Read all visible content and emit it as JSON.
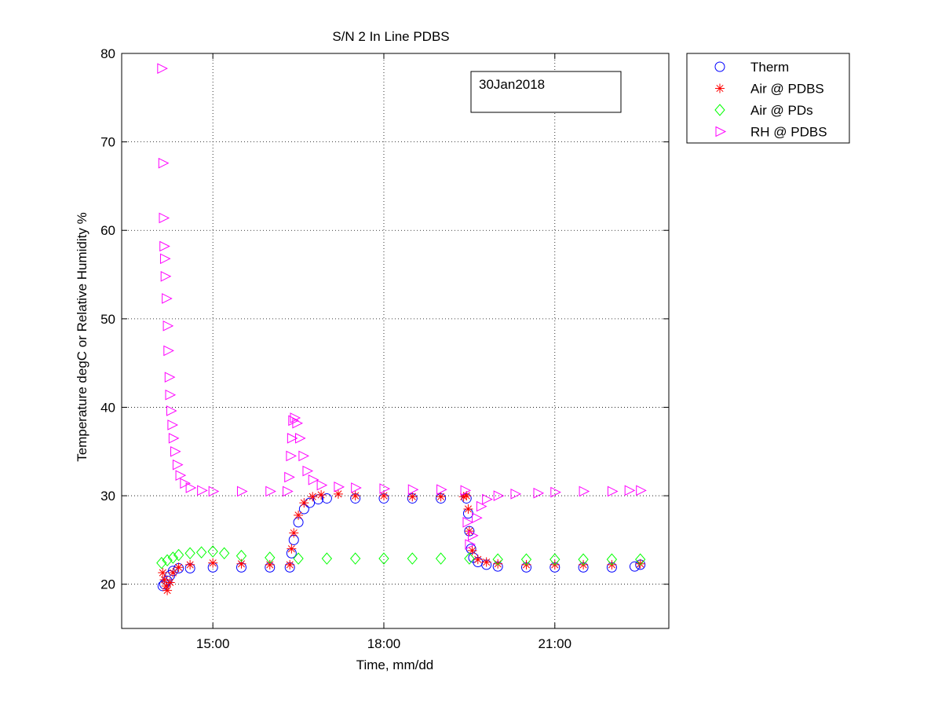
{
  "chart_data": {
    "type": "scatter",
    "title": "S/N 2 In Line PDBS",
    "xlabel": "Time, mm/dd",
    "ylabel": "Temperature degC or Relative Humidity %",
    "x_unit": "hours of day",
    "xlim": [
      13.4,
      23.0
    ],
    "ylim": [
      15,
      80
    ],
    "x_ticks": [
      15,
      18,
      21
    ],
    "x_tick_labels": [
      "15:00",
      "18:00",
      "21:00"
    ],
    "y_ticks": [
      20,
      30,
      40,
      50,
      60,
      70,
      80
    ],
    "grid": true,
    "annotation": "30Jan2018",
    "legend_position": "outside-top-right",
    "series": [
      {
        "name": "Therm",
        "marker": "circle",
        "color": "#0000ff",
        "points": [
          [
            14.12,
            19.8
          ],
          [
            14.15,
            20.0
          ],
          [
            14.2,
            20.4
          ],
          [
            14.25,
            21.0
          ],
          [
            14.3,
            21.5
          ],
          [
            14.4,
            21.8
          ],
          [
            14.6,
            21.8
          ],
          [
            15.0,
            21.9
          ],
          [
            15.5,
            21.9
          ],
          [
            16.0,
            21.9
          ],
          [
            16.35,
            21.9
          ],
          [
            16.38,
            23.5
          ],
          [
            16.42,
            25.0
          ],
          [
            16.5,
            27.0
          ],
          [
            16.6,
            28.5
          ],
          [
            16.7,
            29.2
          ],
          [
            16.85,
            29.6
          ],
          [
            17.0,
            29.7
          ],
          [
            17.5,
            29.7
          ],
          [
            18.0,
            29.7
          ],
          [
            18.5,
            29.7
          ],
          [
            19.0,
            29.7
          ],
          [
            19.45,
            29.7
          ],
          [
            19.48,
            28.0
          ],
          [
            19.5,
            26.0
          ],
          [
            19.53,
            24.0
          ],
          [
            19.57,
            23.0
          ],
          [
            19.65,
            22.5
          ],
          [
            19.8,
            22.2
          ],
          [
            20.0,
            22.0
          ],
          [
            20.5,
            21.9
          ],
          [
            21.0,
            21.9
          ],
          [
            21.5,
            21.9
          ],
          [
            22.0,
            21.9
          ],
          [
            22.4,
            22.0
          ],
          [
            22.5,
            22.2
          ]
        ]
      },
      {
        "name": "Air @ PDBS",
        "marker": "asterisk",
        "color": "#ff0000",
        "points": [
          [
            14.12,
            21.3
          ],
          [
            14.15,
            20.5
          ],
          [
            14.18,
            19.8
          ],
          [
            14.2,
            19.3
          ],
          [
            14.25,
            20.2
          ],
          [
            14.3,
            21.3
          ],
          [
            14.4,
            21.9
          ],
          [
            14.6,
            22.2
          ],
          [
            15.0,
            22.4
          ],
          [
            15.5,
            22.3
          ],
          [
            16.0,
            22.2
          ],
          [
            16.35,
            22.2
          ],
          [
            16.38,
            24.0
          ],
          [
            16.42,
            25.8
          ],
          [
            16.5,
            27.8
          ],
          [
            16.6,
            29.2
          ],
          [
            16.75,
            29.9
          ],
          [
            16.9,
            30.1
          ],
          [
            17.2,
            30.2
          ],
          [
            17.5,
            30.0
          ],
          [
            18.0,
            30.0
          ],
          [
            18.5,
            29.9
          ],
          [
            19.0,
            29.9
          ],
          [
            19.4,
            29.9
          ],
          [
            19.45,
            30.0
          ],
          [
            19.48,
            28.5
          ],
          [
            19.5,
            26.0
          ],
          [
            19.55,
            23.8
          ],
          [
            19.65,
            22.8
          ],
          [
            19.8,
            22.5
          ],
          [
            20.0,
            22.3
          ],
          [
            20.5,
            22.2
          ],
          [
            21.0,
            22.2
          ],
          [
            21.5,
            22.2
          ],
          [
            22.0,
            22.2
          ],
          [
            22.5,
            22.3
          ]
        ]
      },
      {
        "name": "Air @ PDs",
        "marker": "diamond",
        "color": "#00ff00",
        "points": [
          [
            14.1,
            22.4
          ],
          [
            14.2,
            22.7
          ],
          [
            14.3,
            23.0
          ],
          [
            14.4,
            23.3
          ],
          [
            14.6,
            23.5
          ],
          [
            14.8,
            23.6
          ],
          [
            15.0,
            23.7
          ],
          [
            15.2,
            23.5
          ],
          [
            15.5,
            23.2
          ],
          [
            16.0,
            23.0
          ],
          [
            16.5,
            22.9
          ],
          [
            17.0,
            22.9
          ],
          [
            17.5,
            22.9
          ],
          [
            18.0,
            22.9
          ],
          [
            18.5,
            22.9
          ],
          [
            19.0,
            22.9
          ],
          [
            19.5,
            22.9
          ],
          [
            20.0,
            22.8
          ],
          [
            20.5,
            22.8
          ],
          [
            21.0,
            22.8
          ],
          [
            21.5,
            22.8
          ],
          [
            22.0,
            22.8
          ],
          [
            22.5,
            22.8
          ]
        ]
      },
      {
        "name": "RH @ PDBS",
        "marker": "triangle-right",
        "color": "#ff00ff",
        "points": [
          [
            14.1,
            78.3
          ],
          [
            14.12,
            67.6
          ],
          [
            14.13,
            61.4
          ],
          [
            14.14,
            58.2
          ],
          [
            14.15,
            56.8
          ],
          [
            14.16,
            54.8
          ],
          [
            14.18,
            52.3
          ],
          [
            14.2,
            49.2
          ],
          [
            14.21,
            46.4
          ],
          [
            14.23,
            43.4
          ],
          [
            14.24,
            41.4
          ],
          [
            14.26,
            39.6
          ],
          [
            14.28,
            38.0
          ],
          [
            14.3,
            36.5
          ],
          [
            14.33,
            35.0
          ],
          [
            14.37,
            33.5
          ],
          [
            14.42,
            32.3
          ],
          [
            14.5,
            31.4
          ],
          [
            14.6,
            30.9
          ],
          [
            14.8,
            30.6
          ],
          [
            15.0,
            30.5
          ],
          [
            15.5,
            30.5
          ],
          [
            16.0,
            30.5
          ],
          [
            16.3,
            30.5
          ],
          [
            16.33,
            32.1
          ],
          [
            16.36,
            34.5
          ],
          [
            16.38,
            36.5
          ],
          [
            16.4,
            38.5
          ],
          [
            16.43,
            38.8
          ],
          [
            16.47,
            38.2
          ],
          [
            16.52,
            36.5
          ],
          [
            16.58,
            34.5
          ],
          [
            16.65,
            32.8
          ],
          [
            16.75,
            31.8
          ],
          [
            16.9,
            31.2
          ],
          [
            17.2,
            31.0
          ],
          [
            17.5,
            30.9
          ],
          [
            18.0,
            30.8
          ],
          [
            18.5,
            30.7
          ],
          [
            19.0,
            30.7
          ],
          [
            19.42,
            30.6
          ],
          [
            19.46,
            27.0
          ],
          [
            19.5,
            24.5
          ],
          [
            19.55,
            25.5
          ],
          [
            19.62,
            27.5
          ],
          [
            19.7,
            28.8
          ],
          [
            19.8,
            29.6
          ],
          [
            20.0,
            30.0
          ],
          [
            20.3,
            30.2
          ],
          [
            20.7,
            30.3
          ],
          [
            21.0,
            30.4
          ],
          [
            21.5,
            30.5
          ],
          [
            22.0,
            30.5
          ],
          [
            22.3,
            30.6
          ],
          [
            22.5,
            30.6
          ]
        ]
      }
    ]
  }
}
